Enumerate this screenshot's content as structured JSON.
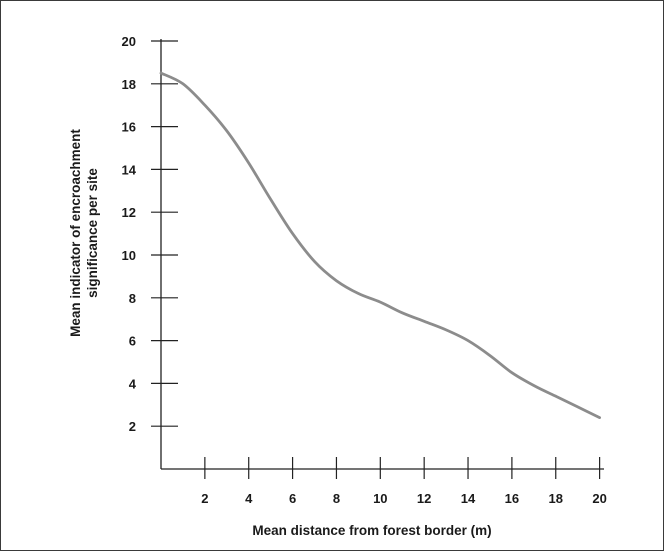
{
  "chart_data": {
    "type": "line",
    "title": "",
    "xlabel": "Mean distance from forest border (m)",
    "ylabel_lines": [
      "Mean indicator of encroachment",
      "significance per site"
    ],
    "xlim": [
      0,
      20.2
    ],
    "ylim": [
      0,
      20
    ],
    "x_ticks": [
      2,
      4,
      6,
      8,
      10,
      12,
      14,
      16,
      18,
      20
    ],
    "y_ticks": [
      2,
      4,
      6,
      8,
      10,
      12,
      14,
      16,
      18,
      20
    ],
    "grid": false,
    "series": [
      {
        "color": "#8c8c8c",
        "x": [
          0,
          1,
          2,
          3,
          4,
          5,
          6,
          7,
          8,
          9,
          10,
          11,
          12,
          13,
          14,
          15,
          16,
          17,
          18,
          19,
          20
        ],
        "y": [
          18.5,
          18.0,
          17.0,
          15.8,
          14.3,
          12.6,
          11.0,
          9.7,
          8.8,
          8.2,
          7.8,
          7.3,
          6.9,
          6.5,
          6.0,
          5.3,
          4.5,
          3.9,
          3.4,
          2.9,
          2.4
        ]
      }
    ]
  }
}
